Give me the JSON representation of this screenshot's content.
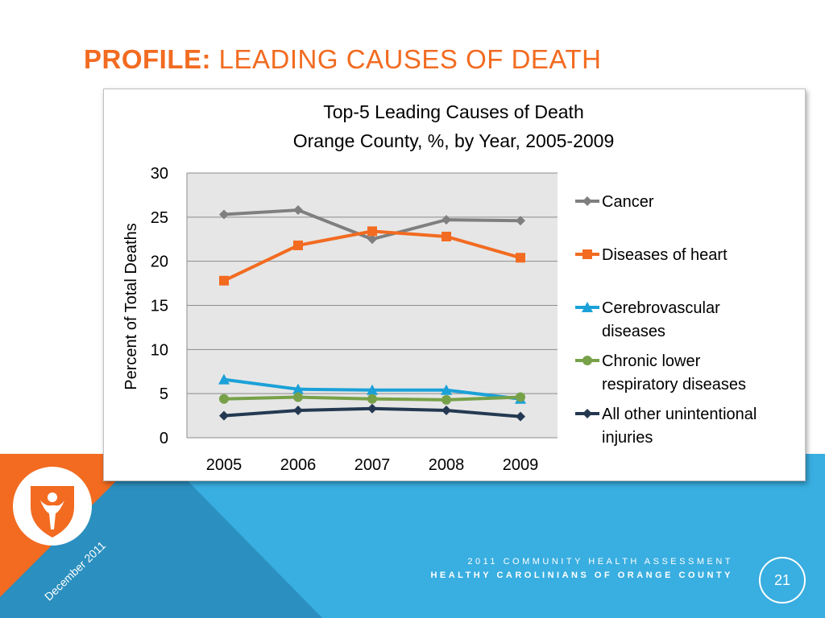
{
  "slide": {
    "title_prefix": "PROFILE:",
    "title_rest": " LEADING CAUSES OF DEATH",
    "date": "December 2011",
    "footer_line1": "2011 COMMUNITY HEALTH ASSESSMENT",
    "footer_line2": "HEALTHY CAROLINIANS OF ORANGE COUNTY",
    "page_number": "21",
    "colors": {
      "accent_orange": "#f26b21",
      "band_blue": "#39aee0",
      "band_dark_blue": "#2b8fbf",
      "white": "#ffffff"
    }
  },
  "chart_data": {
    "type": "line",
    "title_line1": "Top-5 Leading Causes of Death",
    "title_line2": "Orange County, %, by Year, 2005-2009",
    "xlabel": "",
    "ylabel": "Percent of Total Deaths",
    "categories": [
      "2005",
      "2006",
      "2007",
      "2008",
      "2009"
    ],
    "ylim": [
      0,
      30
    ],
    "yticks": [
      0,
      5,
      10,
      15,
      20,
      25,
      30
    ],
    "grid": true,
    "legend_position": "right",
    "series": [
      {
        "name": "Cancer",
        "color": "#7f7f7f",
        "marker": "diamond",
        "values": [
          25.3,
          25.8,
          22.5,
          24.7,
          24.6
        ]
      },
      {
        "name": "Diseases of heart",
        "color": "#f26b21",
        "marker": "square",
        "values": [
          17.8,
          21.8,
          23.4,
          22.8,
          20.4
        ]
      },
      {
        "name": "Cerebrovascular diseases",
        "color": "#1ba1d8",
        "marker": "triangle",
        "legend_lines": [
          "Cerebrovascular",
          "diseases"
        ],
        "values": [
          6.6,
          5.5,
          5.4,
          5.4,
          4.4
        ]
      },
      {
        "name": "Chronic lower respiratory diseases",
        "color": "#77a149",
        "marker": "circle",
        "legend_lines": [
          "Chronic lower",
          "respiratory diseases"
        ],
        "values": [
          4.4,
          4.6,
          4.4,
          4.3,
          4.6
        ]
      },
      {
        "name": "All other unintentional injuries",
        "color": "#243951",
        "marker": "diamond",
        "legend_lines": [
          "All other unintentional",
          "injuries"
        ],
        "values": [
          2.5,
          3.1,
          3.3,
          3.1,
          2.4
        ]
      }
    ]
  }
}
